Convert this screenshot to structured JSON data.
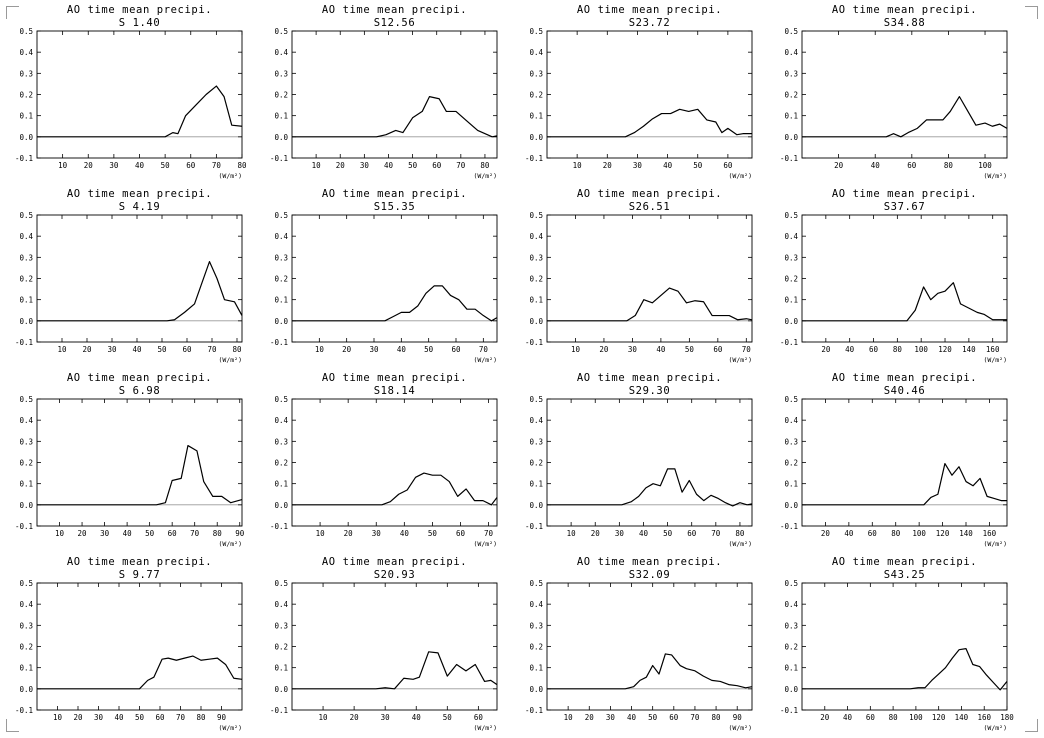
{
  "page": {
    "background": "#ffffff",
    "line_color": "#000000",
    "zero_line_color": "#999999"
  },
  "chart_data": [
    {
      "type": "line",
      "title": "AO time mean precipi.",
      "subtitle": "S 1.40",
      "xlabel": "(W/m²)",
      "xlim": [
        0,
        80
      ],
      "ylim": [
        -0.1,
        0.5
      ],
      "xticks": [
        10,
        20,
        30,
        40,
        50,
        60,
        70,
        80
      ],
      "yticks": [
        -0.1,
        0,
        0.1,
        0.2,
        0.3,
        0.4,
        0.5
      ],
      "series": [
        {
          "x": [
            0,
            50,
            53,
            55,
            58,
            62,
            66,
            70,
            73,
            76,
            80
          ],
          "y": [
            0,
            0,
            0.02,
            0.015,
            0.1,
            0.15,
            0.2,
            0.24,
            0.19,
            0.055,
            0.05
          ]
        }
      ]
    },
    {
      "type": "line",
      "title": "AO time mean precipi.",
      "subtitle": "S12.56",
      "xlabel": "(W/m²)",
      "xlim": [
        0,
        85
      ],
      "ylim": [
        -0.1,
        0.5
      ],
      "xticks": [
        10,
        20,
        30,
        40,
        50,
        60,
        70,
        80
      ],
      "yticks": [
        -0.1,
        0,
        0.1,
        0.2,
        0.3,
        0.4,
        0.5
      ],
      "series": [
        {
          "x": [
            0,
            35,
            39,
            43,
            46,
            50,
            54,
            57,
            61,
            64,
            68,
            72,
            77,
            83,
            85
          ],
          "y": [
            0,
            0,
            0.01,
            0.03,
            0.02,
            0.09,
            0.12,
            0.19,
            0.18,
            0.12,
            0.12,
            0.08,
            0.03,
            0,
            0.005
          ]
        }
      ]
    },
    {
      "type": "line",
      "title": "AO time mean precipi.",
      "subtitle": "S23.72",
      "xlabel": "(W/m²)",
      "xlim": [
        0,
        68
      ],
      "ylim": [
        -0.1,
        0.5
      ],
      "xticks": [
        10,
        20,
        30,
        40,
        50,
        60
      ],
      "yticks": [
        -0.1,
        0,
        0.1,
        0.2,
        0.3,
        0.4,
        0.5
      ],
      "series": [
        {
          "x": [
            0,
            26,
            29,
            32,
            35,
            38,
            41,
            44,
            47,
            50,
            53,
            56,
            58,
            60,
            63,
            65,
            68
          ],
          "y": [
            0,
            0,
            0.02,
            0.05,
            0.085,
            0.11,
            0.11,
            0.13,
            0.12,
            0.13,
            0.08,
            0.07,
            0.02,
            0.04,
            0.01,
            0.015,
            0.015
          ]
        }
      ]
    },
    {
      "type": "line",
      "title": "AO time mean precipi.",
      "subtitle": "S34.88",
      "xlabel": "(W/m²)",
      "xlim": [
        0,
        112
      ],
      "ylim": [
        -0.1,
        0.5
      ],
      "xticks": [
        20,
        40,
        60,
        80,
        100
      ],
      "yticks": [
        -0.1,
        0,
        0.1,
        0.2,
        0.3,
        0.4,
        0.5
      ],
      "series": [
        {
          "x": [
            0,
            46,
            50,
            54,
            58,
            63,
            68,
            72,
            77,
            81,
            86,
            90,
            95,
            100,
            104,
            108,
            112
          ],
          "y": [
            0,
            0,
            0.015,
            0,
            0.02,
            0.04,
            0.08,
            0.08,
            0.08,
            0.12,
            0.19,
            0.13,
            0.055,
            0.065,
            0.05,
            0.06,
            0.04
          ]
        }
      ]
    },
    {
      "type": "line",
      "title": "AO time mean precipi.",
      "subtitle": "S 4.19",
      "xlabel": "(W/m²)",
      "xlim": [
        0,
        82
      ],
      "ylim": [
        -0.1,
        0.5
      ],
      "xticks": [
        10,
        20,
        30,
        40,
        50,
        60,
        70,
        80
      ],
      "yticks": [
        -0.1,
        0,
        0.1,
        0.2,
        0.3,
        0.4,
        0.5
      ],
      "series": [
        {
          "x": [
            0,
            52,
            55,
            59,
            63,
            66,
            69,
            72,
            75,
            79,
            82
          ],
          "y": [
            0,
            0,
            0.005,
            0.04,
            0.08,
            0.18,
            0.28,
            0.2,
            0.1,
            0.09,
            0.025
          ]
        }
      ]
    },
    {
      "type": "line",
      "title": "AO time mean precipi.",
      "subtitle": "S15.35",
      "xlabel": "(W/m²)",
      "xlim": [
        0,
        75
      ],
      "ylim": [
        -0.1,
        0.5
      ],
      "xticks": [
        10,
        20,
        30,
        40,
        50,
        60,
        70
      ],
      "yticks": [
        -0.1,
        0,
        0.1,
        0.2,
        0.3,
        0.4,
        0.5
      ],
      "series": [
        {
          "x": [
            0,
            34,
            37,
            40,
            43,
            46,
            49,
            52,
            55,
            58,
            61,
            64,
            67,
            70,
            73,
            75
          ],
          "y": [
            0,
            0,
            0.02,
            0.04,
            0.04,
            0.07,
            0.13,
            0.165,
            0.165,
            0.12,
            0.1,
            0.055,
            0.055,
            0.025,
            0,
            0.015
          ]
        }
      ]
    },
    {
      "type": "line",
      "title": "AO time mean precipi.",
      "subtitle": "S26.51",
      "xlabel": "(W/m²)",
      "xlim": [
        0,
        72
      ],
      "ylim": [
        -0.1,
        0.5
      ],
      "xticks": [
        10,
        20,
        30,
        40,
        50,
        60,
        70
      ],
      "yticks": [
        -0.1,
        0,
        0.1,
        0.2,
        0.3,
        0.4,
        0.5
      ],
      "series": [
        {
          "x": [
            0,
            28,
            31,
            34,
            37,
            40,
            43,
            46,
            49,
            52,
            55,
            58,
            61,
            64,
            67,
            70,
            72
          ],
          "y": [
            0,
            0,
            0.025,
            0.1,
            0.085,
            0.12,
            0.155,
            0.14,
            0.085,
            0.095,
            0.09,
            0.025,
            0.025,
            0.025,
            0.005,
            0.01,
            0.005
          ]
        }
      ]
    },
    {
      "type": "line",
      "title": "AO time mean precipi.",
      "subtitle": "S37.67",
      "xlabel": "(W/m²)",
      "xlim": [
        0,
        172
      ],
      "ylim": [
        -0.1,
        0.5
      ],
      "xticks": [
        20,
        40,
        60,
        80,
        100,
        120,
        140,
        160
      ],
      "yticks": [
        -0.1,
        0,
        0.1,
        0.2,
        0.3,
        0.4,
        0.5
      ],
      "series": [
        {
          "x": [
            0,
            88,
            95,
            102,
            108,
            114,
            120,
            127,
            133,
            140,
            147,
            153,
            160,
            166,
            172
          ],
          "y": [
            0,
            0,
            0.05,
            0.16,
            0.1,
            0.13,
            0.14,
            0.18,
            0.08,
            0.06,
            0.04,
            0.03,
            0.005,
            0.005,
            0.005
          ]
        }
      ]
    },
    {
      "type": "line",
      "title": "AO time mean precipi.",
      "subtitle": "S 6.98",
      "xlabel": "(W/m²)",
      "xlim": [
        0,
        91
      ],
      "ylim": [
        -0.1,
        0.5
      ],
      "xticks": [
        10,
        20,
        30,
        40,
        50,
        60,
        70,
        80,
        90
      ],
      "yticks": [
        -0.1,
        0,
        0.1,
        0.2,
        0.3,
        0.4,
        0.5
      ],
      "series": [
        {
          "x": [
            0,
            53,
            57,
            60,
            64,
            67,
            71,
            74,
            78,
            82,
            86,
            91
          ],
          "y": [
            0,
            0,
            0.01,
            0.115,
            0.125,
            0.28,
            0.255,
            0.11,
            0.04,
            0.04,
            0.01,
            0.025
          ]
        }
      ]
    },
    {
      "type": "line",
      "title": "AO time mean precipi.",
      "subtitle": "S18.14",
      "xlabel": "(W/m²)",
      "xlim": [
        0,
        73
      ],
      "ylim": [
        -0.1,
        0.5
      ],
      "xticks": [
        10,
        20,
        30,
        40,
        50,
        60,
        70
      ],
      "yticks": [
        -0.1,
        0,
        0.1,
        0.2,
        0.3,
        0.4,
        0.5
      ],
      "series": [
        {
          "x": [
            0,
            32,
            35,
            38,
            41,
            44,
            47,
            50,
            53,
            56,
            59,
            62,
            65,
            68,
            71,
            73
          ],
          "y": [
            0,
            0,
            0.015,
            0.05,
            0.07,
            0.13,
            0.15,
            0.14,
            0.14,
            0.11,
            0.04,
            0.075,
            0.02,
            0.02,
            0,
            0.035
          ]
        }
      ]
    },
    {
      "type": "line",
      "title": "AO time mean precipi.",
      "subtitle": "S29.30",
      "xlabel": "(W/m²)",
      "xlim": [
        0,
        85
      ],
      "ylim": [
        -0.1,
        0.5
      ],
      "xticks": [
        10,
        20,
        30,
        40,
        50,
        60,
        70,
        80
      ],
      "yticks": [
        -0.1,
        0,
        0.1,
        0.2,
        0.3,
        0.4,
        0.5
      ],
      "series": [
        {
          "x": [
            0,
            31,
            35,
            38,
            41,
            44,
            47,
            50,
            53,
            56,
            59,
            62,
            65,
            68,
            71,
            74,
            77,
            80,
            83,
            85
          ],
          "y": [
            0,
            0,
            0.015,
            0.04,
            0.08,
            0.1,
            0.09,
            0.17,
            0.17,
            0.06,
            0.115,
            0.05,
            0.02,
            0.045,
            0.03,
            0.01,
            -0.005,
            0.01,
            0,
            0.005
          ]
        }
      ]
    },
    {
      "type": "line",
      "title": "AO time mean precipi.",
      "subtitle": "S40.46",
      "xlabel": "(W/m²)",
      "xlim": [
        0,
        175
      ],
      "ylim": [
        -0.1,
        0.5
      ],
      "xticks": [
        20,
        40,
        60,
        80,
        100,
        120,
        140,
        160
      ],
      "yticks": [
        -0.1,
        0,
        0.1,
        0.2,
        0.3,
        0.4,
        0.5
      ],
      "series": [
        {
          "x": [
            0,
            104,
            110,
            116,
            122,
            128,
            134,
            140,
            146,
            152,
            158,
            164,
            170,
            175
          ],
          "y": [
            0,
            0,
            0.035,
            0.05,
            0.195,
            0.14,
            0.18,
            0.11,
            0.09,
            0.125,
            0.04,
            0.03,
            0.02,
            0.02
          ]
        }
      ]
    },
    {
      "type": "line",
      "title": "AO time mean precipi.",
      "subtitle": "S 9.77",
      "xlabel": "(W/m²)",
      "xlim": [
        0,
        100
      ],
      "ylim": [
        -0.1,
        0.5
      ],
      "xticks": [
        10,
        20,
        30,
        40,
        50,
        60,
        70,
        80,
        90
      ],
      "yticks": [
        -0.1,
        0,
        0.1,
        0.2,
        0.3,
        0.4,
        0.5
      ],
      "series": [
        {
          "x": [
            0,
            50,
            54,
            57,
            61,
            64,
            68,
            72,
            76,
            80,
            84,
            88,
            92,
            96,
            100
          ],
          "y": [
            0,
            0,
            0.04,
            0.055,
            0.14,
            0.145,
            0.135,
            0.145,
            0.155,
            0.135,
            0.14,
            0.145,
            0.115,
            0.05,
            0.045
          ]
        }
      ]
    },
    {
      "type": "line",
      "title": "AO time mean precipi.",
      "subtitle": "S20.93",
      "xlabel": "(W/m²)",
      "xlim": [
        0,
        66
      ],
      "ylim": [
        -0.1,
        0.5
      ],
      "xticks": [
        10,
        20,
        30,
        40,
        50,
        60
      ],
      "yticks": [
        -0.1,
        0,
        0.1,
        0.2,
        0.3,
        0.4,
        0.5
      ],
      "series": [
        {
          "x": [
            0,
            27,
            30,
            33,
            36,
            39,
            41,
            44,
            47,
            50,
            53,
            56,
            59,
            62,
            64,
            66
          ],
          "y": [
            0,
            0,
            0.005,
            0,
            0.05,
            0.045,
            0.055,
            0.175,
            0.17,
            0.06,
            0.115,
            0.085,
            0.115,
            0.035,
            0.04,
            0.02
          ]
        }
      ]
    },
    {
      "type": "line",
      "title": "AO time mean precipi.",
      "subtitle": "S32.09",
      "xlabel": "(W/m²)",
      "xlim": [
        0,
        97
      ],
      "ylim": [
        -0.1,
        0.5
      ],
      "xticks": [
        10,
        20,
        30,
        40,
        50,
        60,
        70,
        80,
        90
      ],
      "yticks": [
        -0.1,
        0,
        0.1,
        0.2,
        0.3,
        0.4,
        0.5
      ],
      "series": [
        {
          "x": [
            0,
            37,
            41,
            44,
            47,
            50,
            53,
            56,
            59,
            63,
            66,
            70,
            74,
            78,
            82,
            86,
            90,
            94,
            97
          ],
          "y": [
            0,
            0,
            0.01,
            0.04,
            0.055,
            0.11,
            0.07,
            0.165,
            0.16,
            0.11,
            0.095,
            0.085,
            0.06,
            0.04,
            0.035,
            0.02,
            0.015,
            0.005,
            0.01
          ]
        }
      ]
    },
    {
      "type": "line",
      "title": "AO time mean precipi.",
      "subtitle": "S43.25",
      "xlabel": "(W/m²)",
      "xlim": [
        0,
        180
      ],
      "ylim": [
        -0.1,
        0.5
      ],
      "xticks": [
        20,
        40,
        60,
        80,
        100,
        120,
        140,
        160,
        180
      ],
      "yticks": [
        -0.1,
        0,
        0.1,
        0.2,
        0.3,
        0.4,
        0.5
      ],
      "series": [
        {
          "x": [
            0,
            95,
            102,
            108,
            114,
            120,
            126,
            132,
            138,
            144,
            150,
            156,
            162,
            168,
            174,
            180
          ],
          "y": [
            0,
            0,
            0.005,
            0.005,
            0.04,
            0.07,
            0.1,
            0.145,
            0.185,
            0.19,
            0.115,
            0.105,
            0.065,
            0.03,
            -0.005,
            0.035
          ]
        }
      ]
    }
  ]
}
